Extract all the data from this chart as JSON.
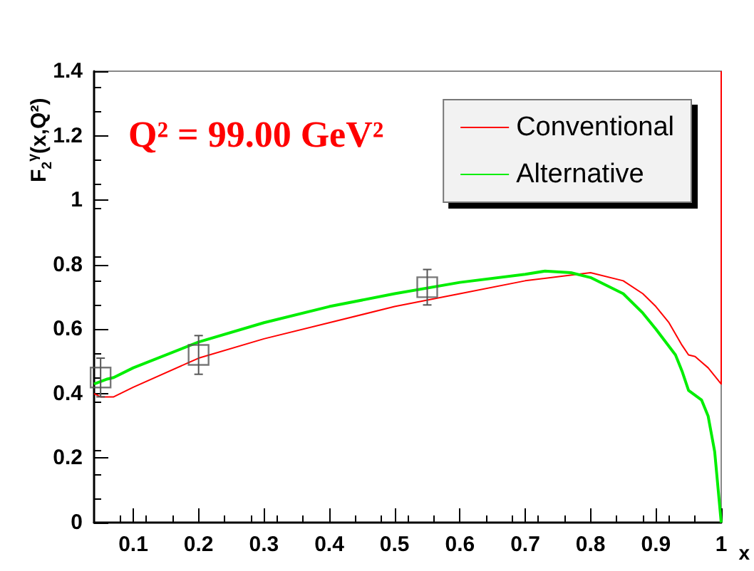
{
  "chart_data": {
    "type": "line",
    "ylabel": "F$_{2}$$^{γ}$(x,Q²)",
    "xlabel": "x",
    "annotations": [
      "Q² = 99.00 GeV²"
    ],
    "xlim": [
      0.04,
      1
    ],
    "xticks": [
      0.1,
      0.2,
      0.3,
      0.4,
      0.5,
      0.6,
      0.7,
      0.8,
      0.9,
      1
    ],
    "ylim": [
      0,
      1.4
    ],
    "yticks": [
      0,
      0.2,
      0.4,
      0.6,
      0.8,
      1,
      1.2,
      1.4
    ],
    "grid": false,
    "legend": "top right",
    "marker": "none",
    "line_style": "solid",
    "series": [
      {
        "name": "Conventional",
        "color": "#ff0000",
        "x": [
          0.04,
          0.05,
          0.07,
          0.1,
          0.2,
          0.3,
          0.4,
          0.5,
          0.6,
          0.7,
          0.8,
          0.85,
          0.88,
          0.9,
          0.92,
          0.94,
          0.95,
          0.96,
          0.98,
          1,
          1
        ],
        "values": [
          0.4,
          0.39,
          0.39,
          0.42,
          0.51,
          0.57,
          0.62,
          0.67,
          0.71,
          0.75,
          0.775,
          0.75,
          0.71,
          0.67,
          0.62,
          0.55,
          0.52,
          0.515,
          0.48,
          0.43,
          1.4
        ]
      },
      {
        "name": "Alternative",
        "color": "#00ee00",
        "x": [
          0.04,
          0.06,
          0.07,
          0.1,
          0.2,
          0.3,
          0.4,
          0.5,
          0.6,
          0.7,
          0.73,
          0.77,
          0.8,
          0.85,
          0.88,
          0.9,
          0.93,
          0.94,
          0.95,
          0.97,
          0.98,
          0.99,
          1
        ],
        "values": [
          0.43,
          0.445,
          0.45,
          0.48,
          0.56,
          0.62,
          0.67,
          0.71,
          0.745,
          0.77,
          0.78,
          0.775,
          0.76,
          0.71,
          0.65,
          0.6,
          0.52,
          0.47,
          0.41,
          0.38,
          0.33,
          0.22,
          0
        ]
      },
      {
        "type": "scatter",
        "marker": "square",
        "color": "#555555",
        "x": [
          0.05,
          0.2,
          0.55
        ],
        "values": [
          0.45,
          0.52,
          0.73
        ],
        "errors": [
          0.06,
          0.06,
          0.055
        ]
      }
    ]
  }
}
